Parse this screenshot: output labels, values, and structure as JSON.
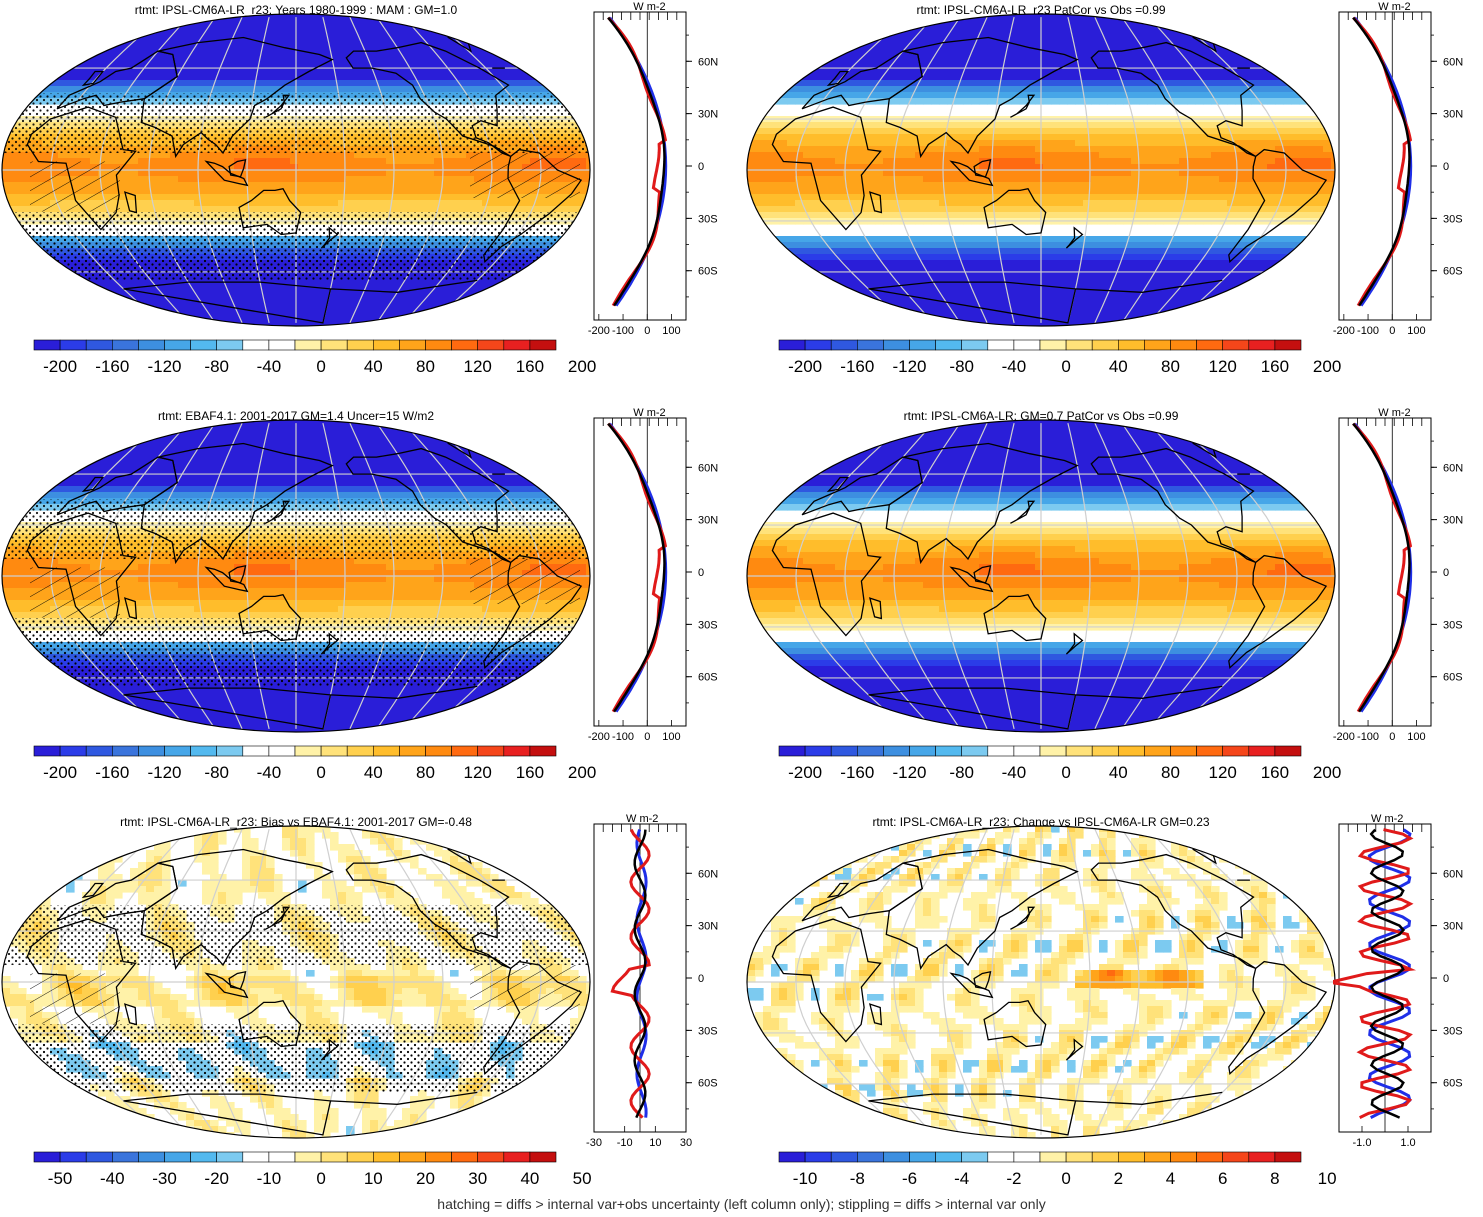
{
  "palette": [
    "#2a1ed8",
    "#2b3ce8",
    "#2f58e0",
    "#3a74dc",
    "#3d8fe0",
    "#46a6e8",
    "#53b9ef",
    "#7ccaf0",
    "#ffffff",
    "#ffffff",
    "#fff2a8",
    "#ffe27a",
    "#ffd04e",
    "#ffbd2b",
    "#ffa41a",
    "#ff8a10",
    "#ff6a10",
    "#f5461a",
    "#e82020",
    "#c40f0f"
  ],
  "panels": [
    {
      "id": "p1",
      "col": 0,
      "row": 0,
      "title": "rtmt: IPSL-CM6A-LR_r23: Years 1980-1999 : MAM : GM=1.0",
      "kind": "mean",
      "stipple": true,
      "hatch": true,
      "colorbar_labels": [
        "-200",
        "-160",
        "-120",
        "-80",
        "-40",
        "0",
        "40",
        "80",
        "120",
        "160",
        "200"
      ],
      "zonal": {
        "units": "W m-2",
        "xticks": [
          "-200",
          "-100",
          "0",
          "100"
        ],
        "xmin": -220,
        "xmax": 160,
        "lat_labels": [
          "60N",
          "30N",
          "0",
          "30S",
          "60S"
        ],
        "curves": "mean"
      }
    },
    {
      "id": "p2",
      "col": 1,
      "row": 0,
      "title": "rtmt: IPSL-CM6A-LR_r23 PatCor vs Obs =0.99",
      "kind": "mean",
      "stipple": false,
      "hatch": false,
      "colorbar_labels": [
        "-200",
        "-160",
        "-120",
        "-80",
        "-40",
        "0",
        "40",
        "80",
        "120",
        "160",
        "200"
      ],
      "zonal": {
        "units": "W m-2",
        "xticks": [
          "-200",
          "-100",
          "0",
          "100"
        ],
        "xmin": -220,
        "xmax": 160,
        "lat_labels": [
          "60N",
          "30N",
          "0",
          "30S",
          "60S"
        ],
        "curves": "mean"
      }
    },
    {
      "id": "p3",
      "col": 0,
      "row": 1,
      "title": "rtmt: EBAF4.1: 2001-2017 GM=1.4 Uncer=15 W/m2",
      "kind": "mean",
      "stipple": true,
      "hatch": true,
      "colorbar_labels": [
        "-200",
        "-160",
        "-120",
        "-80",
        "-40",
        "0",
        "40",
        "80",
        "120",
        "160",
        "200"
      ],
      "zonal": {
        "units": "W m-2",
        "xticks": [
          "-200",
          "-100",
          "0",
          "100"
        ],
        "xmin": -220,
        "xmax": 160,
        "lat_labels": [
          "60N",
          "30N",
          "0",
          "30S",
          "60S"
        ],
        "curves": "mean"
      }
    },
    {
      "id": "p4",
      "col": 1,
      "row": 1,
      "title": "rtmt: IPSL-CM6A-LR: GM=0.7 PatCor vs Obs =0.99",
      "kind": "mean",
      "stipple": false,
      "hatch": false,
      "colorbar_labels": [
        "-200",
        "-160",
        "-120",
        "-80",
        "-40",
        "0",
        "40",
        "80",
        "120",
        "160",
        "200"
      ],
      "zonal": {
        "units": "W m-2",
        "xticks": [
          "-200",
          "-100",
          "0",
          "100"
        ],
        "xmin": -220,
        "xmax": 160,
        "lat_labels": [
          "60N",
          "30N",
          "0",
          "30S",
          "60S"
        ],
        "curves": "mean"
      }
    },
    {
      "id": "p5",
      "col": 0,
      "row": 2,
      "title": "rtmt: IPSL-CM6A-LR_r23: Bias vs EBAF4.1: 2001-2017 GM=-0.48",
      "kind": "bias",
      "stipple": true,
      "hatch": true,
      "colorbar_labels": [
        "-50",
        "-40",
        "-30",
        "-20",
        "-10",
        "0",
        "10",
        "20",
        "30",
        "40",
        "50"
      ],
      "zonal": {
        "units": "W m-2",
        "xticks": [
          "-30",
          "-10",
          "10",
          "30"
        ],
        "xmin": -30,
        "xmax": 30,
        "lat_labels": [
          "60N",
          "30N",
          "0",
          "30S",
          "60S"
        ],
        "curves": "bias"
      }
    },
    {
      "id": "p6",
      "col": 1,
      "row": 2,
      "title": "rtmt: IPSL-CM6A-LR_r23: Change vs IPSL-CM6A-LR GM=0.23",
      "kind": "change",
      "stipple": false,
      "hatch": false,
      "colorbar_labels": [
        "-10",
        "-8",
        "-6",
        "-4",
        "-2",
        "0",
        "2",
        "4",
        "6",
        "8",
        "10"
      ],
      "zonal": {
        "units": "W m-2",
        "xticks": [
          "-1.0",
          "1.0"
        ],
        "xmin": -2,
        "xmax": 2,
        "lat_labels": [
          "60N",
          "30N",
          "0",
          "30S",
          "60S"
        ],
        "curves": "change"
      }
    }
  ],
  "footer": "hatching = diffs > internal var+obs uncertainty (left column only); stippling = diffs > internal var only"
}
